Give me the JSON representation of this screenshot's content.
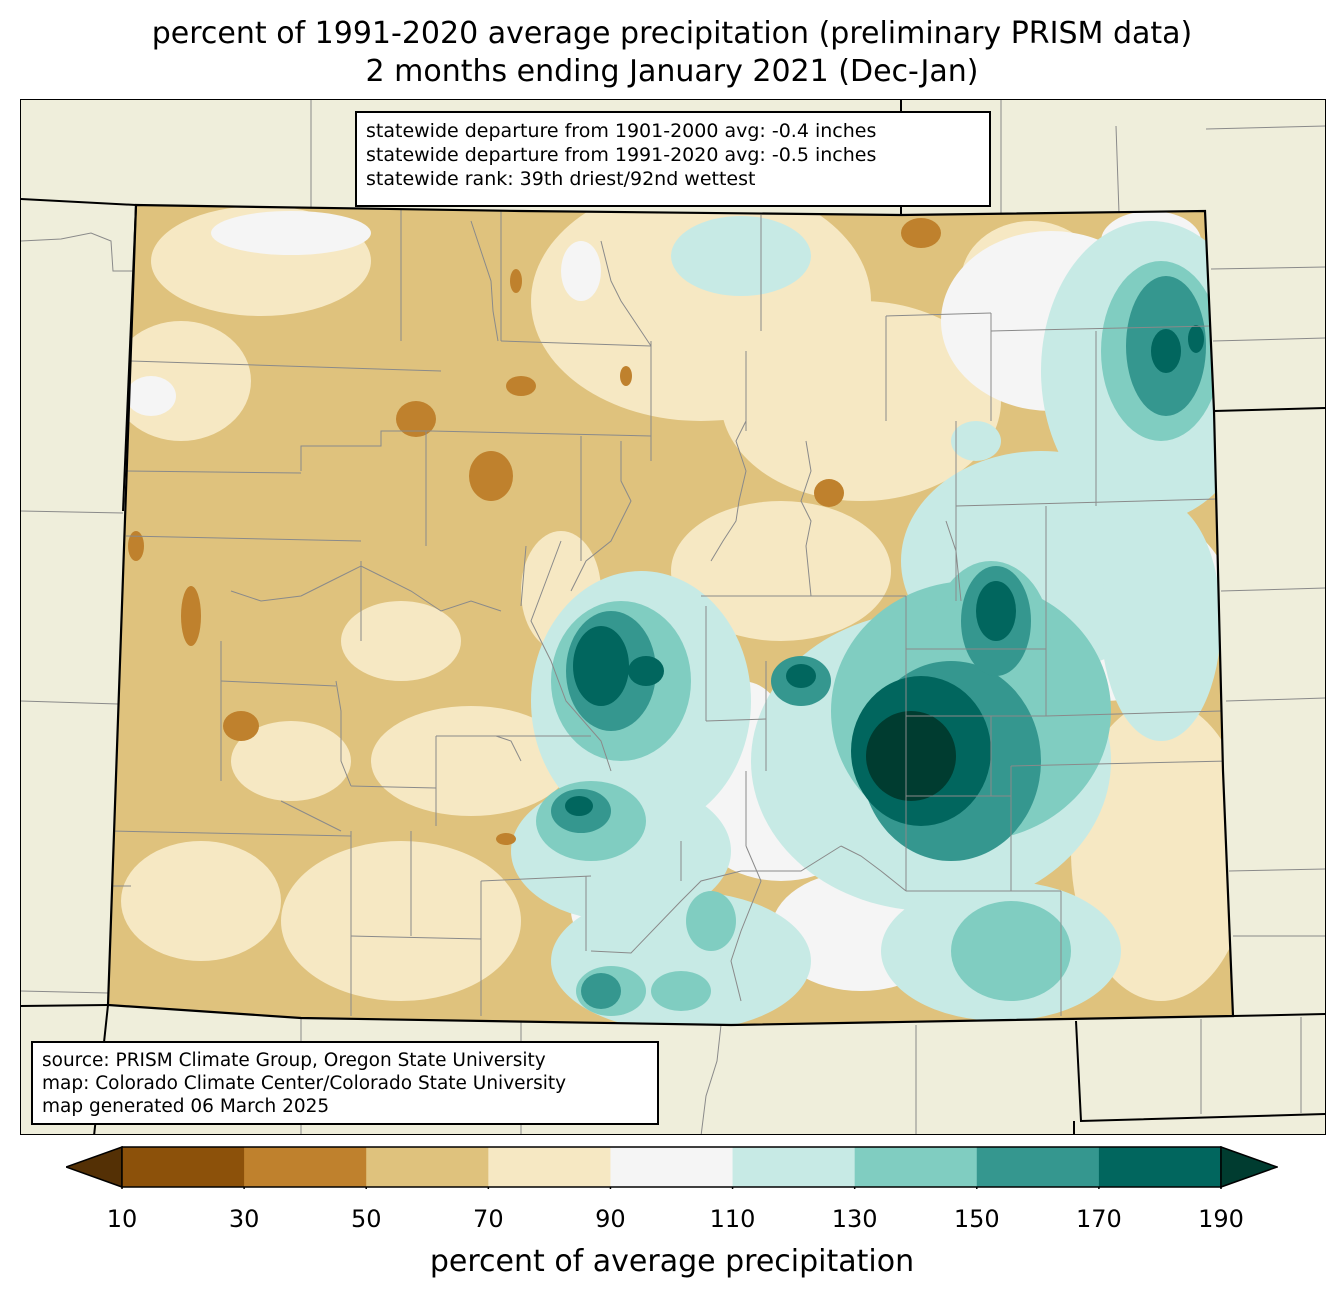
{
  "title": {
    "line1": "percent of 1991-2020 average precipitation (preliminary PRISM data)",
    "line2": "2 months ending January 2021 (Dec-Jan)"
  },
  "stats_box": {
    "line1": "statewide departure from 1901-2000 avg: -0.4 inches",
    "line2": "statewide departure from 1991-2020 avg: -0.5 inches",
    "line3": "statewide rank: 39th driest/92nd wettest"
  },
  "source_box": {
    "line1": "source: PRISM Climate Group, Oregon State University",
    "line2": "map: Colorado Climate Center/Colorado State University",
    "line3": "map generated 06 March 2025"
  },
  "colorbar": {
    "label": "percent of average precipitation",
    "ticks": [
      "10",
      "30",
      "50",
      "70",
      "90",
      "110",
      "130",
      "150",
      "170",
      "190"
    ],
    "under_color": "#543005",
    "over_color": "#003c30",
    "bin_colors": [
      "#8c510a",
      "#bf812d",
      "#dfc27d",
      "#f6e8c3",
      "#f5f5f5",
      "#c7eae5",
      "#80cdc1",
      "#35978f",
      "#01665e"
    ]
  },
  "map_colors": {
    "outside_land": "#efeedb",
    "county_lines": "#8a8a8a",
    "state_border": "#000000"
  }
}
